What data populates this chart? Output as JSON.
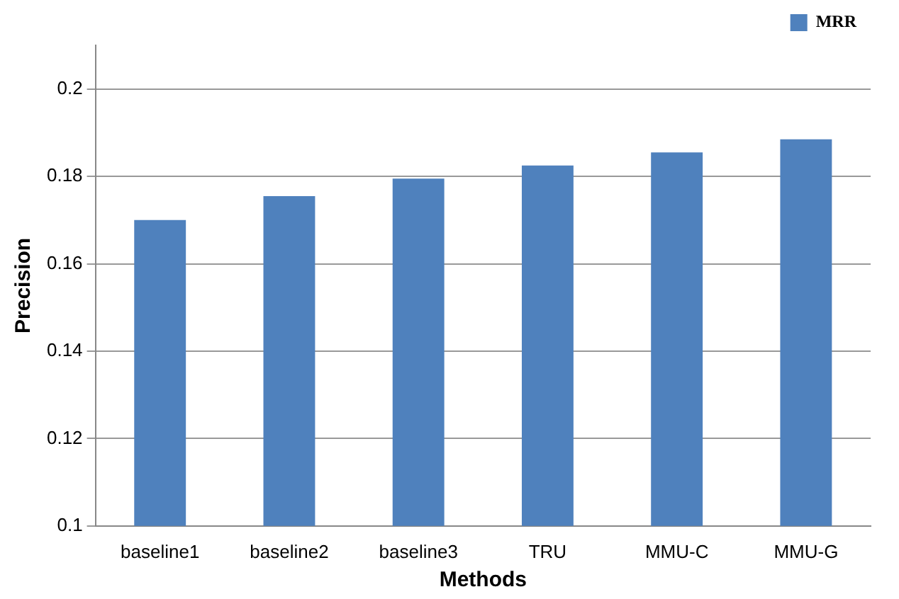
{
  "chart_data": {
    "type": "bar",
    "xlabel": "Methods",
    "ylabel": "Precision",
    "categories": [
      "baseline1",
      "baseline2",
      "baseline3",
      "TRU",
      "MMU-C",
      "MMU-G"
    ],
    "series": [
      {
        "name": "MRR",
        "color": "#4f81bd",
        "values": [
          0.17,
          0.1755,
          0.1795,
          0.1825,
          0.1855,
          0.1885
        ]
      }
    ],
    "ylim": [
      0.1,
      0.21
    ],
    "yticks": [
      0.1,
      0.12,
      0.14,
      0.16,
      0.18,
      0.2
    ],
    "grid": "y",
    "legend": "top right"
  }
}
